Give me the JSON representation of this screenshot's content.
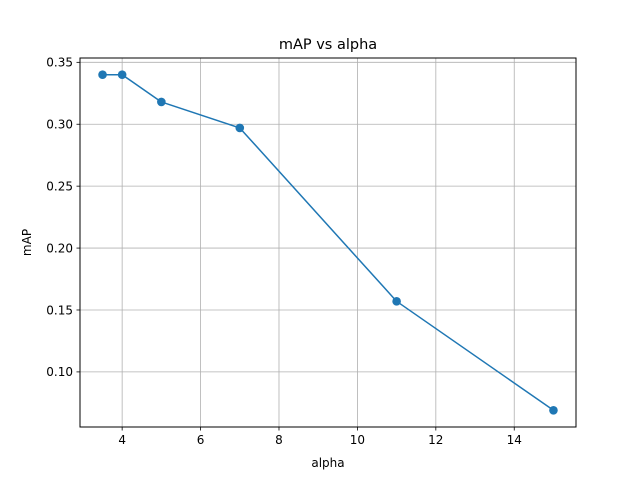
{
  "chart_data": {
    "type": "line",
    "title": "mAP vs alpha",
    "xlabel": "alpha",
    "ylabel": "mAP",
    "x": [
      3.5,
      4,
      5,
      7,
      11,
      15
    ],
    "series": [
      {
        "values": [
          0.34,
          0.34,
          0.318,
          0.297,
          0.157,
          0.069
        ],
        "color": "#1f77b4",
        "marker": "circle"
      }
    ],
    "xlim": [
      2.925,
      15.575
    ],
    "ylim": [
      0.0555,
      0.3535
    ],
    "xticks": [
      4,
      6,
      8,
      10,
      12,
      14
    ],
    "yticks": [
      0.1,
      0.15,
      0.2,
      0.25,
      0.3,
      0.35
    ],
    "xtick_labels": [
      "4",
      "6",
      "8",
      "10",
      "12",
      "14"
    ],
    "ytick_labels": [
      "0.10",
      "0.15",
      "0.20",
      "0.25",
      "0.30",
      "0.35"
    ],
    "grid": true,
    "grid_color": "#b0b0b0"
  }
}
